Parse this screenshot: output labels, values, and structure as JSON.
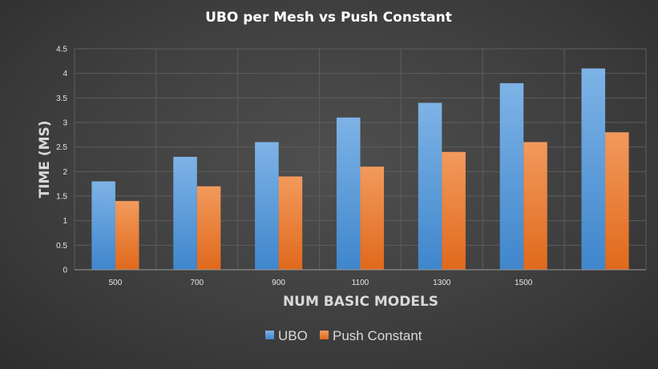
{
  "chart_data": {
    "type": "bar",
    "title": "UBO per Mesh vs Push Constant",
    "xlabel": "NUM BASIC MODELS",
    "ylabel": "TIME (MS)",
    "categories": [
      "500",
      "700",
      "900",
      "1100",
      "1300",
      "1500",
      ""
    ],
    "series": [
      {
        "name": "UBO",
        "values": [
          1.8,
          2.3,
          2.6,
          3.1,
          3.4,
          3.8,
          4.1
        ],
        "color": "#5b9bd5"
      },
      {
        "name": "Push Constant",
        "values": [
          1.4,
          1.7,
          1.9,
          2.1,
          2.4,
          2.6,
          2.8
        ],
        "color": "#ed7d31"
      }
    ],
    "ylim": [
      0,
      4.5
    ],
    "yticks": [
      "0",
      "0.5",
      "1",
      "1.5",
      "2",
      "2.5",
      "3",
      "3.5",
      "4",
      "4.5"
    ],
    "grid": true,
    "legend_position": "bottom"
  }
}
